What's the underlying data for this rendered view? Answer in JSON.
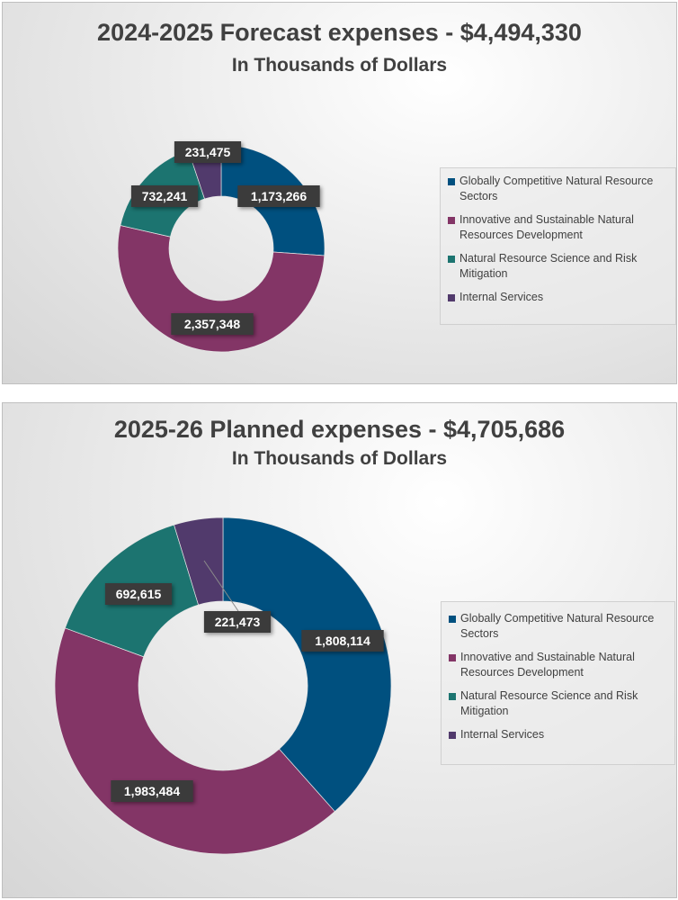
{
  "chart_data": [
    {
      "type": "pie",
      "variant": "donut",
      "title": "2024-2025 Forecast expenses - $4,494,330",
      "subtitle": "In Thousands of Dollars",
      "categories": [
        "Globally Competitive Natural Resource Sectors",
        "Innovative and Sustainable Natural Resources Development",
        "Natural Resource Science and Risk Mitigation",
        "Internal Services"
      ],
      "values": [
        1173266,
        2357348,
        732241,
        231475
      ],
      "data_labels": [
        "1,173,266",
        "2,357,348",
        "732,241",
        "231,475"
      ],
      "colors": [
        "#00507f",
        "#833566",
        "#1c7470",
        "#513a6c"
      ],
      "legend_position": "right"
    },
    {
      "type": "pie",
      "variant": "donut",
      "title": "2025-26 Planned expenses - $4,705,686",
      "subtitle": "In Thousands of Dollars",
      "categories": [
        "Globally Competitive Natural Resource Sectors",
        "Innovative and Sustainable Natural Resources Development",
        "Natural Resource Science and Risk Mitigation",
        "Internal Services"
      ],
      "values": [
        1808114,
        1983484,
        692615,
        221473
      ],
      "data_labels": [
        "1,808,114",
        "1,983,484",
        "692,615",
        "221,473"
      ],
      "colors": [
        "#00507f",
        "#833566",
        "#1c7470",
        "#513a6c"
      ],
      "legend_position": "right"
    }
  ]
}
